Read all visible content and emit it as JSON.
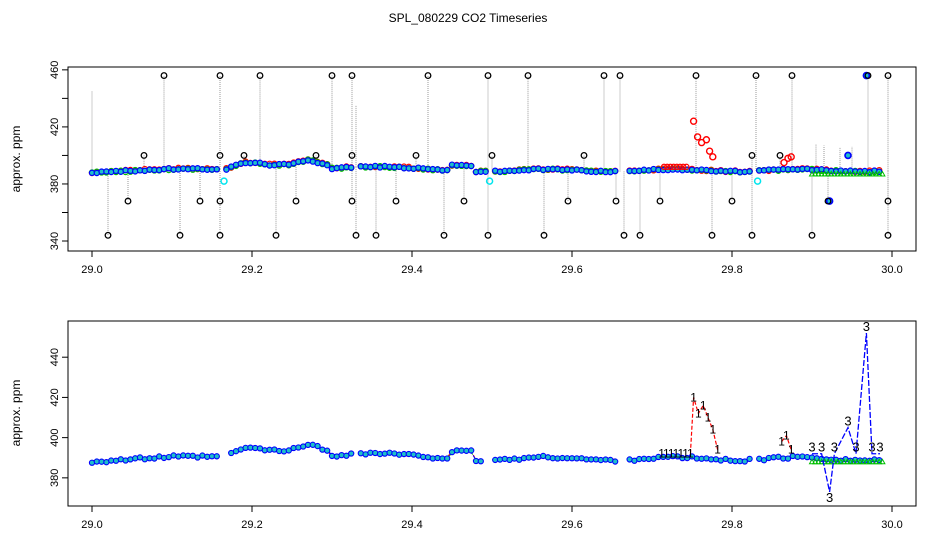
{
  "title": "SPL_080229  CO2 Timeseries",
  "colors": {
    "black": "#000000",
    "red": "#ff0000",
    "blue": "#0000ff",
    "cyan": "#00e5ee",
    "green": "#00c000",
    "gray": "#9a9a9a"
  },
  "chart_data": [
    {
      "type": "scatter",
      "ylabel": "approx. ppm",
      "xlim": [
        28.97,
        30.03
      ],
      "ylim": [
        333,
        462
      ],
      "xticks": [
        29.0,
        29.2,
        29.4,
        29.6,
        29.8,
        30.0
      ],
      "xtick_labels": [
        "29.0",
        "29.2",
        "29.4",
        "29.6",
        "29.8",
        "30.0"
      ],
      "yticks": [
        340,
        380,
        420,
        460
      ],
      "ytick_labels": [
        "340",
        "380",
        "420",
        "460"
      ],
      "yticks_minor": [
        360,
        400,
        440
      ],
      "baseline_series": [
        {
          "name": "red",
          "x0": 29.0,
          "x1": 29.99,
          "step": 0.006
        },
        {
          "name": "green",
          "x0": 29.0,
          "x1": 29.99,
          "step": 0.006
        },
        {
          "name": "blue",
          "x0": 29.0,
          "x1": 29.99,
          "step": 0.006
        }
      ],
      "gaps": [
        [
          29.162,
          29.168
        ],
        [
          29.326,
          29.332
        ],
        [
          29.495,
          29.5
        ],
        [
          29.66,
          29.668
        ],
        [
          29.826,
          29.832
        ]
      ],
      "outliers_high": [
        29.09,
        29.16,
        29.21,
        29.3,
        29.325,
        29.42,
        29.495,
        29.545,
        29.64,
        29.66,
        29.755,
        29.83,
        29.875,
        29.97,
        29.995
      ],
      "outliers_low": [
        29.02,
        29.11,
        29.16,
        29.23,
        29.33,
        29.355,
        29.44,
        29.495,
        29.565,
        29.665,
        29.685,
        29.775,
        29.825,
        29.9,
        29.995
      ],
      "outliers_mid_high": [
        29.065,
        29.16,
        29.19,
        29.28,
        29.325,
        29.405,
        29.5,
        29.615,
        29.825,
        29.86
      ],
      "outliers_mid_low": [
        29.045,
        29.135,
        29.16,
        29.255,
        29.325,
        29.38,
        29.465,
        29.595,
        29.655,
        29.71,
        29.8,
        29.92,
        29.995
      ],
      "cyan_points": [
        {
          "x": 29.165,
          "y": 382
        },
        {
          "x": 29.497,
          "y": 382
        },
        {
          "x": 29.832,
          "y": 382
        }
      ],
      "red_spike": [
        {
          "x": 29.752,
          "y": 424
        },
        {
          "x": 29.757,
          "y": 413
        },
        {
          "x": 29.762,
          "y": 409
        },
        {
          "x": 29.768,
          "y": 411
        },
        {
          "x": 29.772,
          "y": 403
        },
        {
          "x": 29.776,
          "y": 399
        },
        {
          "x": 29.865,
          "y": 395
        },
        {
          "x": 29.87,
          "y": 398
        },
        {
          "x": 29.874,
          "y": 399
        }
      ],
      "blue_extra": [
        {
          "x": 29.922,
          "y": 368
        },
        {
          "x": 29.945,
          "y": 400
        },
        {
          "x": 29.968,
          "y": 456
        }
      ]
    },
    {
      "type": "line",
      "ylabel": "approx. ppm",
      "xlim": [
        28.97,
        30.03
      ],
      "ylim": [
        366,
        458
      ],
      "xticks": [
        29.0,
        29.2,
        29.4,
        29.6,
        29.8,
        30.0
      ],
      "xtick_labels": [
        "29.0",
        "29.2",
        "29.4",
        "29.6",
        "29.8",
        "30.0"
      ],
      "yticks": [
        380,
        400,
        420,
        440
      ],
      "ytick_labels": [
        "380",
        "400",
        "420",
        "440"
      ],
      "series_markers": [
        "1",
        "2",
        "3"
      ],
      "red_spike": [
        {
          "x": 29.748,
          "y": 392
        },
        {
          "x": 29.752,
          "y": 420
        },
        {
          "x": 29.758,
          "y": 412
        },
        {
          "x": 29.764,
          "y": 416
        },
        {
          "x": 29.77,
          "y": 410
        },
        {
          "x": 29.776,
          "y": 404
        },
        {
          "x": 29.782,
          "y": 394
        },
        {
          "x": 29.862,
          "y": 398
        },
        {
          "x": 29.868,
          "y": 401
        },
        {
          "x": 29.874,
          "y": 394
        }
      ],
      "blue_spike": [
        {
          "x": 29.9,
          "y": 392
        },
        {
          "x": 29.912,
          "y": 392
        },
        {
          "x": 29.922,
          "y": 373
        },
        {
          "x": 29.928,
          "y": 392
        },
        {
          "x": 29.945,
          "y": 405
        },
        {
          "x": 29.955,
          "y": 392
        },
        {
          "x": 29.968,
          "y": 452
        },
        {
          "x": 29.975,
          "y": 392
        },
        {
          "x": 29.985,
          "y": 392
        }
      ]
    }
  ]
}
